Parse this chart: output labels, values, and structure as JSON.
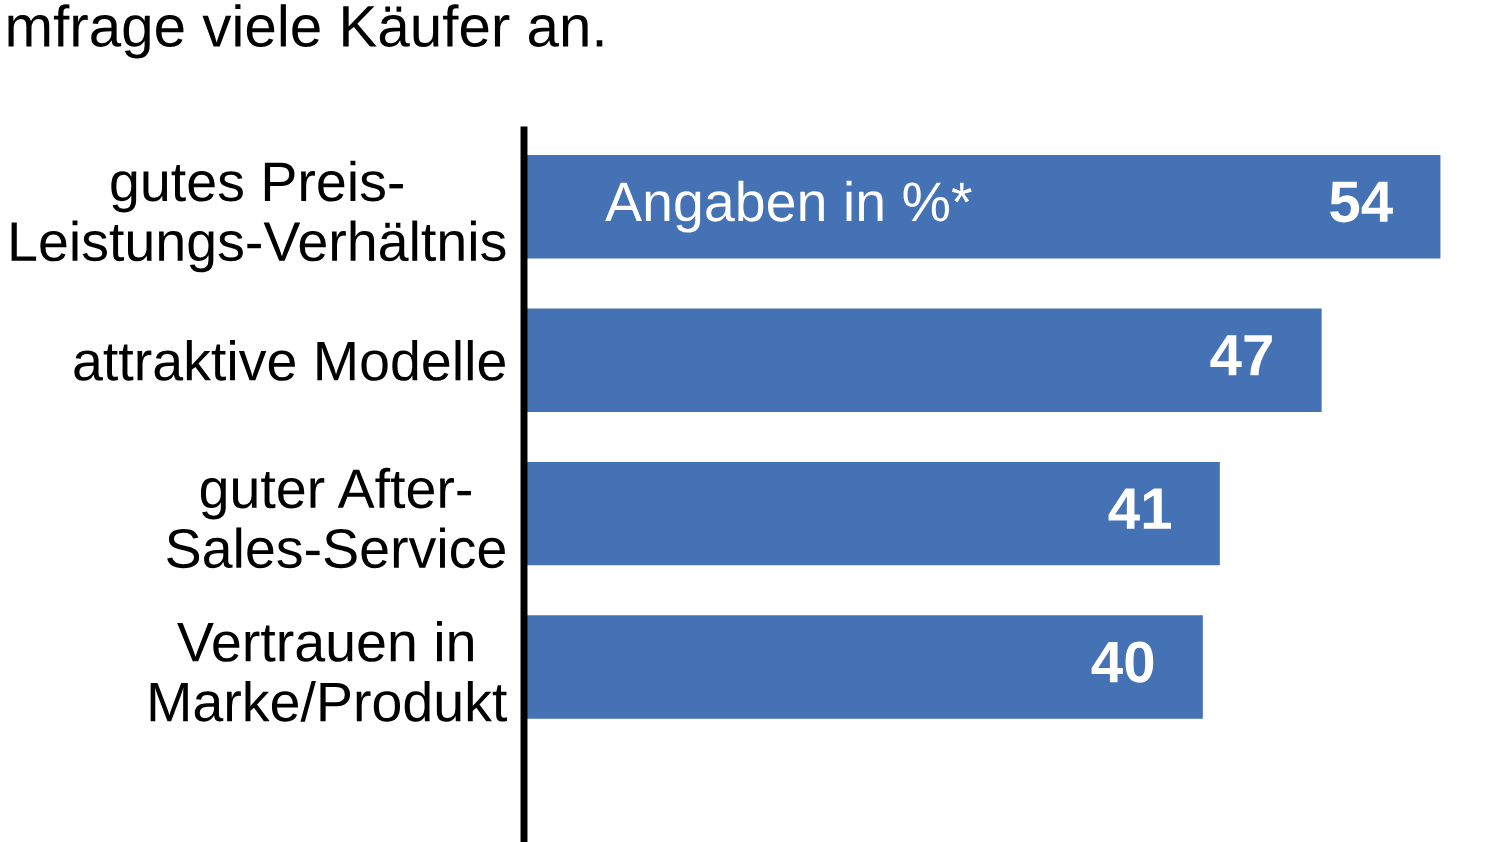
{
  "chart_data": {
    "type": "bar",
    "orientation": "horizontal",
    "title": "mfrage viele Käufer an.",
    "categories": [
      "gutes Preis-\nLeistungs-Verhältnis",
      "attraktive Modelle",
      "guter After-\nSales-Service",
      "Vertrauen in\nMarke/Produkt"
    ],
    "values": [
      54,
      47,
      41,
      40
    ],
    "color": "#4571b5",
    "data_labels": true,
    "annotations": [
      "Angaben in %*"
    ]
  }
}
